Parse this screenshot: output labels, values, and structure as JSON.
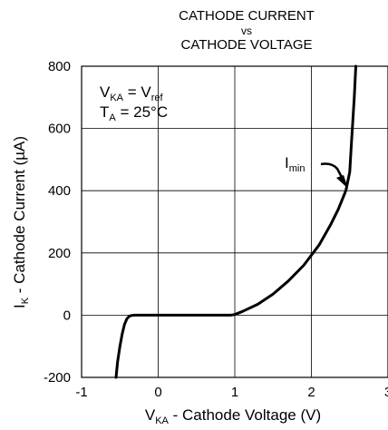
{
  "chart_data": {
    "type": "line",
    "title_lines": [
      "CATHODE CURRENT",
      "vs",
      "CATHODE VOLTAGE"
    ],
    "xlabel": {
      "main": "V",
      "sub": "KA",
      "rest": " - Cathode Voltage (V)"
    },
    "ylabel": {
      "main": "I",
      "sub": "K",
      "rest": " - Cathode Current (µA)"
    },
    "xlim": [
      -1,
      3
    ],
    "ylim": [
      -200,
      800
    ],
    "x_ticks": [
      -1,
      0,
      1,
      2,
      3
    ],
    "x_tick_labels": [
      "-1",
      "0",
      "1",
      "2",
      "3"
    ],
    "y_ticks": [
      -200,
      0,
      200,
      400,
      600,
      800
    ],
    "y_tick_labels": [
      "-200",
      "0",
      "200",
      "400",
      "600",
      "800"
    ],
    "grid": true,
    "conditions": [
      {
        "main": "V",
        "sub": "KA",
        "mid": " = V",
        "sub2": "ref"
      },
      {
        "main": "T",
        "sub": "A",
        "mid": " = 25°C",
        "sub2": ""
      }
    ],
    "annotation": {
      "main": "I",
      "sub": "min",
      "x": 2.45,
      "y": 410
    },
    "series": [
      {
        "x": [
          -0.55,
          -0.53,
          -0.5,
          -0.47,
          -0.44,
          -0.41,
          -0.38,
          -0.35,
          -0.3,
          0.0,
          0.5,
          0.95,
          1.0,
          1.1,
          1.3,
          1.5,
          1.7,
          1.9,
          2.1,
          2.25,
          2.35,
          2.45,
          2.5,
          2.52,
          2.54,
          2.56,
          2.58
        ],
        "y": [
          -200,
          -150,
          -100,
          -60,
          -30,
          -12,
          -4,
          -1,
          0,
          0,
          0,
          0,
          2,
          12,
          35,
          68,
          110,
          160,
          225,
          290,
          340,
          400,
          460,
          540,
          620,
          700,
          800
        ]
      }
    ]
  }
}
